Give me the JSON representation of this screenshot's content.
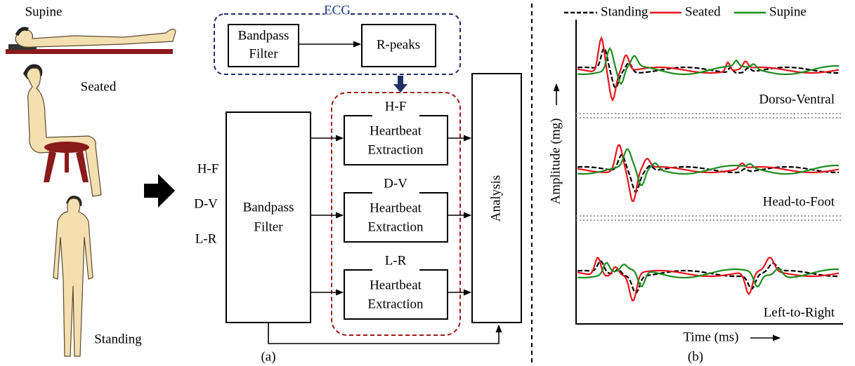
{
  "postures": [
    "Supine",
    "Seated",
    "Standing"
  ],
  "ecg": {
    "label": "ECG",
    "filter": [
      "Bandpass",
      "Filter"
    ],
    "detector": "R-peaks"
  },
  "inputs": [
    "H-F",
    "D-V",
    "L-R"
  ],
  "bandpass": [
    "Bandpass",
    "Filter"
  ],
  "extraction": [
    {
      "axis": "H-F",
      "lines": [
        "Heartbeat",
        "Extraction"
      ]
    },
    {
      "axis": "D-V",
      "lines": [
        "Heartbeat",
        "Extraction"
      ]
    },
    {
      "axis": "L-R",
      "lines": [
        "Heartbeat",
        "Extraction"
      ]
    }
  ],
  "analysis": "Analysis",
  "caption_a": "(a)",
  "panel_b": {
    "legend": [
      "Standing",
      "Seated",
      "Supine"
    ],
    "y_label": "Amplitude (mg)",
    "x_label": "Time (ms)",
    "subplots": [
      "Dorso-Ventral",
      "Head-to-Foot",
      "Left-to-Right"
    ],
    "caption": "(b)"
  }
}
